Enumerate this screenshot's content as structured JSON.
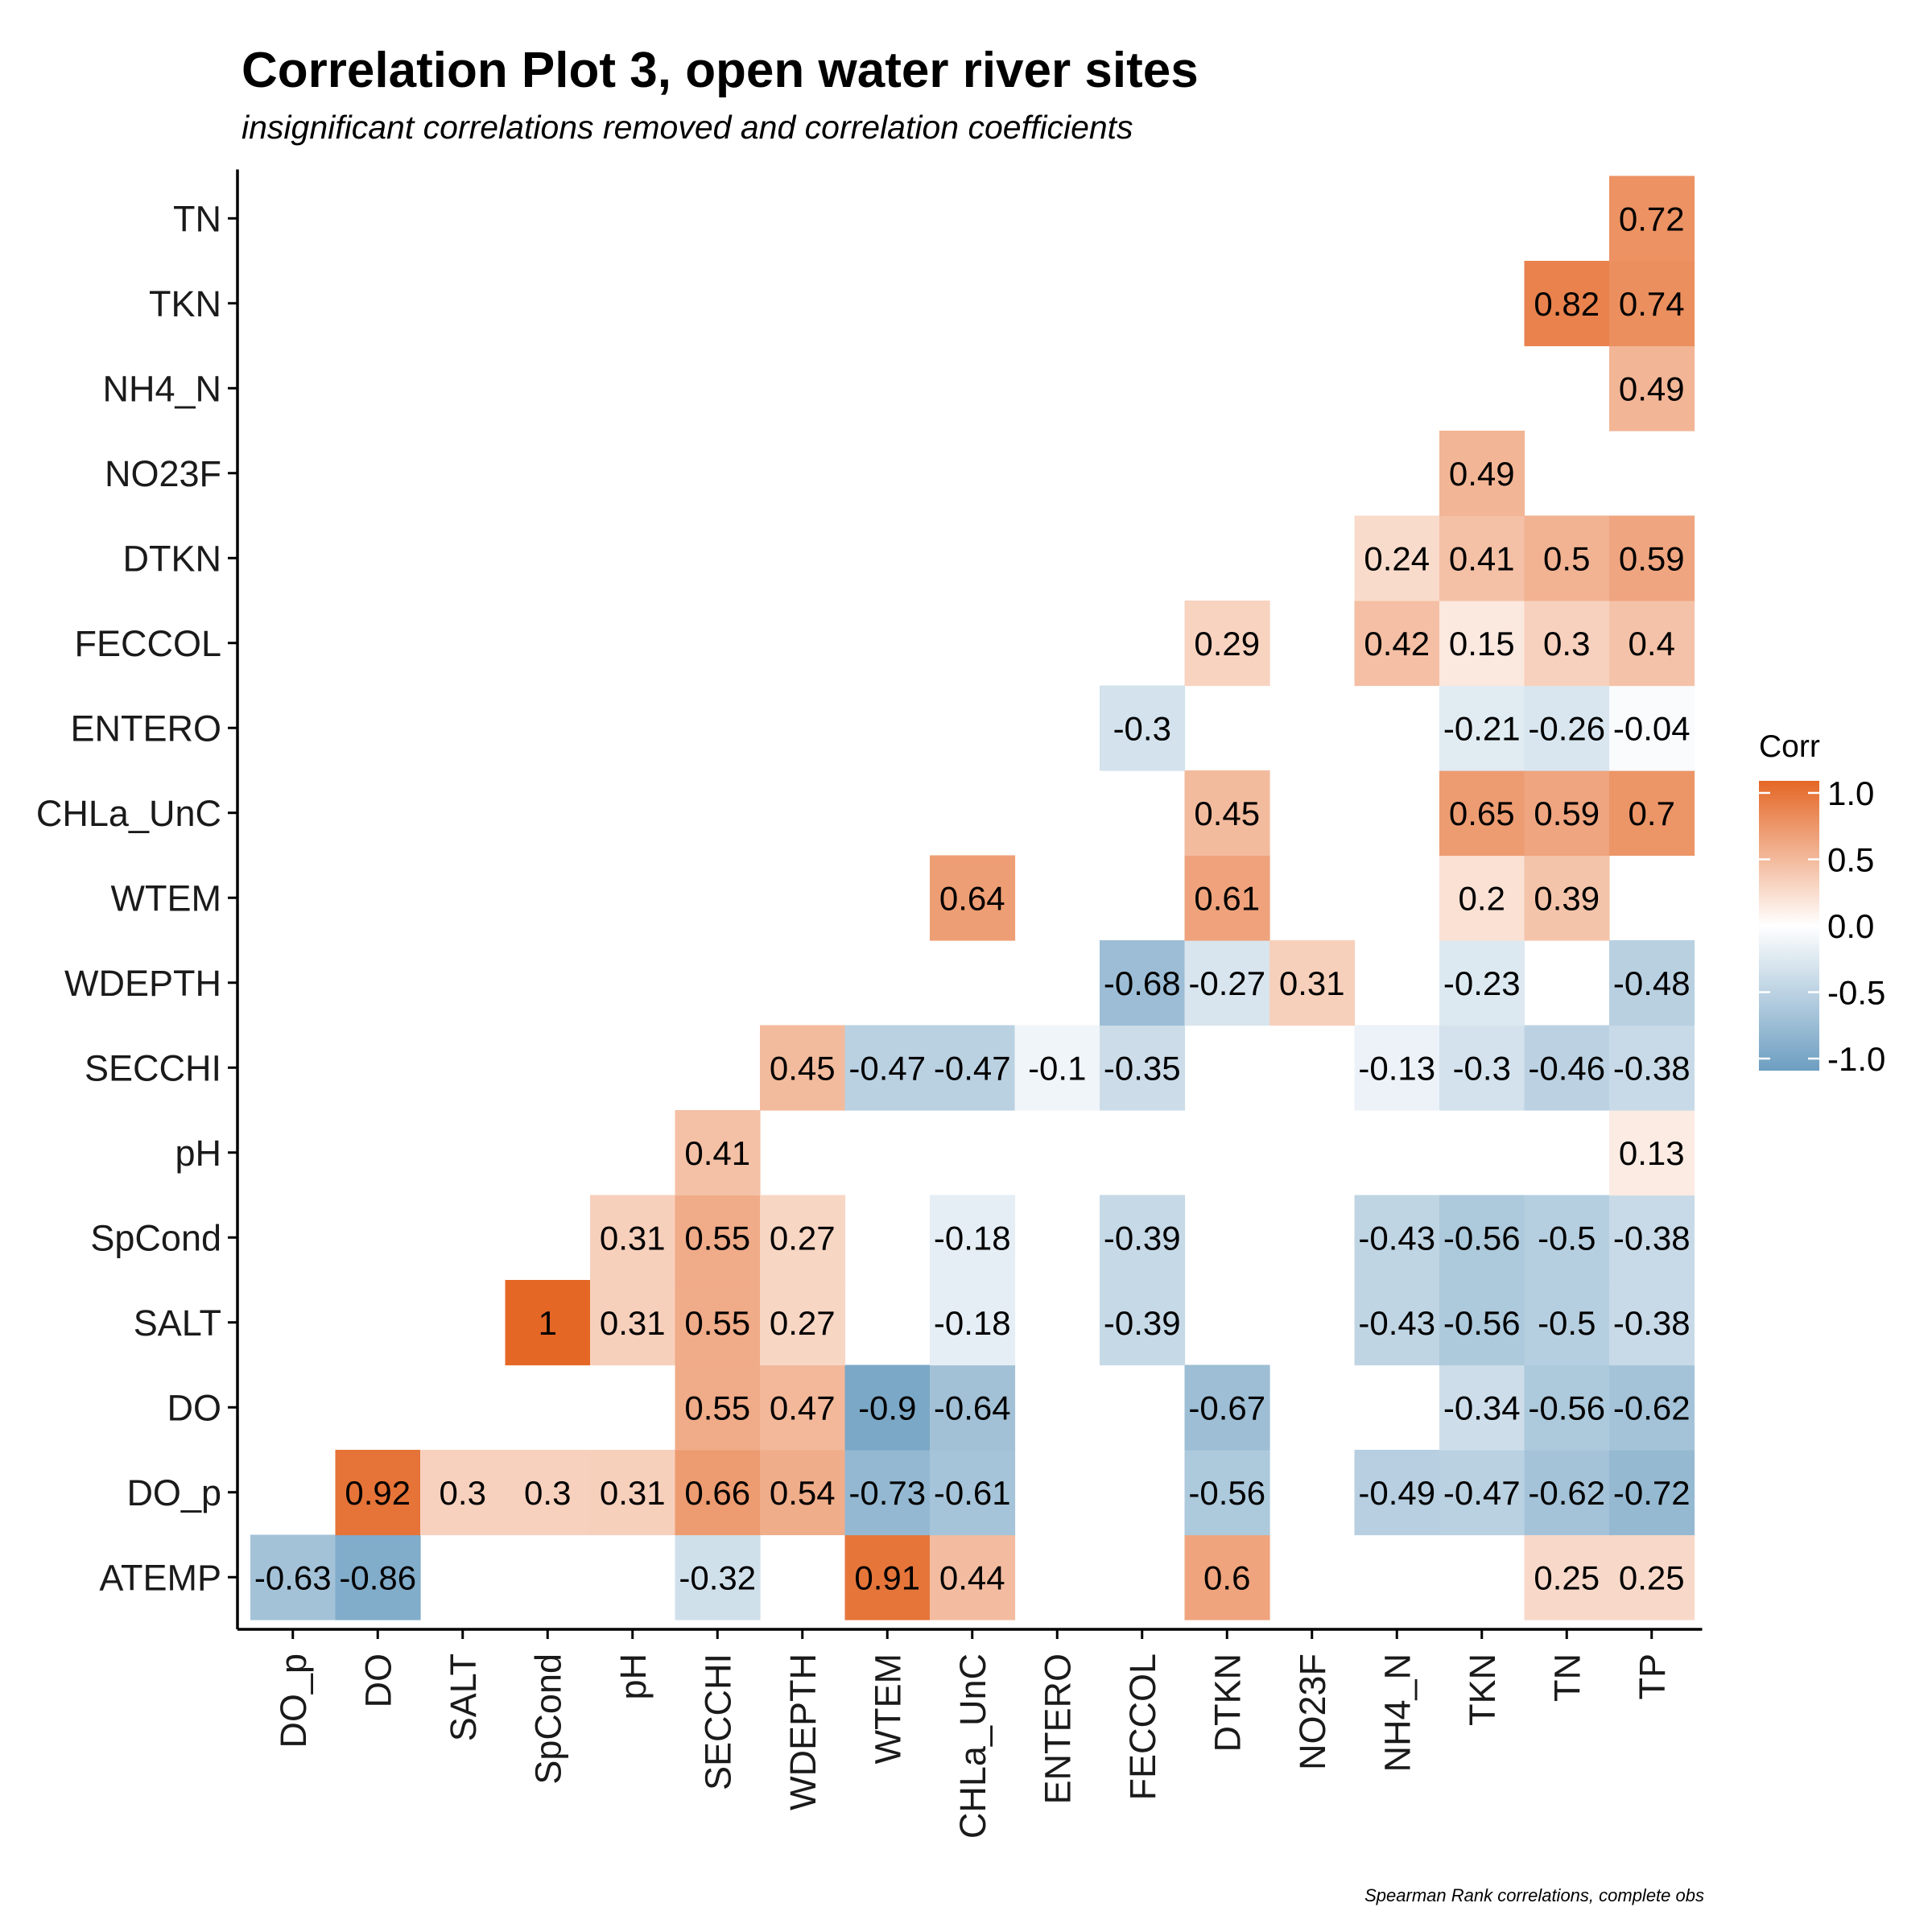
{
  "chart_data": {
    "type": "heatmap",
    "title": "Correlation Plot 3, open water river sites",
    "subtitle": "insignificant correlations removed and correlation coefficients",
    "caption": "Spearman Rank correlations, complete obs",
    "x_labels": [
      "DO_p",
      "DO",
      "SALT",
      "SpCond",
      "pH",
      "SECCHI",
      "WDEPTH",
      "WTEM",
      "CHLa_UnC",
      "ENTERO",
      "FECCOL",
      "DTKN",
      "NO23F",
      "NH4_N",
      "TKN",
      "TN",
      "TP"
    ],
    "y_labels": [
      "ATEMP",
      "DO_p",
      "DO",
      "SALT",
      "SpCond",
      "pH",
      "SECCHI",
      "WDEPTH",
      "WTEM",
      "CHLa_UnC",
      "ENTERO",
      "FECCOL",
      "DTKN",
      "NO23F",
      "NH4_N",
      "TKN",
      "TN"
    ],
    "cells": [
      {
        "x": "DO_p",
        "y": "ATEMP",
        "value": -0.63,
        "label": "-0.63"
      },
      {
        "x": "DO",
        "y": "ATEMP",
        "value": -0.86,
        "label": "-0.86"
      },
      {
        "x": "SECCHI",
        "y": "ATEMP",
        "value": -0.32,
        "label": "-0.32"
      },
      {
        "x": "WTEM",
        "y": "ATEMP",
        "value": 0.91,
        "label": "0.91"
      },
      {
        "x": "CHLa_UnC",
        "y": "ATEMP",
        "value": 0.44,
        "label": "0.44"
      },
      {
        "x": "DTKN",
        "y": "ATEMP",
        "value": 0.6,
        "label": "0.6"
      },
      {
        "x": "TN",
        "y": "ATEMP",
        "value": 0.25,
        "label": "0.25"
      },
      {
        "x": "TP",
        "y": "ATEMP",
        "value": 0.25,
        "label": "0.25"
      },
      {
        "x": "DO",
        "y": "DO_p",
        "value": 0.92,
        "label": "0.92"
      },
      {
        "x": "SALT",
        "y": "DO_p",
        "value": 0.3,
        "label": "0.3"
      },
      {
        "x": "SpCond",
        "y": "DO_p",
        "value": 0.3,
        "label": "0.3"
      },
      {
        "x": "pH",
        "y": "DO_p",
        "value": 0.31,
        "label": "0.31"
      },
      {
        "x": "SECCHI",
        "y": "DO_p",
        "value": 0.66,
        "label": "0.66"
      },
      {
        "x": "WDEPTH",
        "y": "DO_p",
        "value": 0.54,
        "label": "0.54"
      },
      {
        "x": "WTEM",
        "y": "DO_p",
        "value": -0.73,
        "label": "-0.73"
      },
      {
        "x": "CHLa_UnC",
        "y": "DO_p",
        "value": -0.61,
        "label": "-0.61"
      },
      {
        "x": "DTKN",
        "y": "DO_p",
        "value": -0.56,
        "label": "-0.56"
      },
      {
        "x": "NH4_N",
        "y": "DO_p",
        "value": -0.49,
        "label": "-0.49"
      },
      {
        "x": "TKN",
        "y": "DO_p",
        "value": -0.47,
        "label": "-0.47"
      },
      {
        "x": "TN",
        "y": "DO_p",
        "value": -0.62,
        "label": "-0.62"
      },
      {
        "x": "TP",
        "y": "DO_p",
        "value": -0.72,
        "label": "-0.72"
      },
      {
        "x": "SECCHI",
        "y": "DO",
        "value": 0.55,
        "label": "0.55"
      },
      {
        "x": "WDEPTH",
        "y": "DO",
        "value": 0.47,
        "label": "0.47"
      },
      {
        "x": "WTEM",
        "y": "DO",
        "value": -0.9,
        "label": "-0.9"
      },
      {
        "x": "CHLa_UnC",
        "y": "DO",
        "value": -0.64,
        "label": "-0.64"
      },
      {
        "x": "DTKN",
        "y": "DO",
        "value": -0.67,
        "label": "-0.67"
      },
      {
        "x": "TKN",
        "y": "DO",
        "value": -0.34,
        "label": "-0.34"
      },
      {
        "x": "TN",
        "y": "DO",
        "value": -0.56,
        "label": "-0.56"
      },
      {
        "x": "TP",
        "y": "DO",
        "value": -0.62,
        "label": "-0.62"
      },
      {
        "x": "SpCond",
        "y": "SALT",
        "value": 1,
        "label": "1"
      },
      {
        "x": "pH",
        "y": "SALT",
        "value": 0.31,
        "label": "0.31"
      },
      {
        "x": "SECCHI",
        "y": "SALT",
        "value": 0.55,
        "label": "0.55"
      },
      {
        "x": "WDEPTH",
        "y": "SALT",
        "value": 0.27,
        "label": "0.27"
      },
      {
        "x": "CHLa_UnC",
        "y": "SALT",
        "value": -0.18,
        "label": "-0.18"
      },
      {
        "x": "FECCOL",
        "y": "SALT",
        "value": -0.39,
        "label": "-0.39"
      },
      {
        "x": "NH4_N",
        "y": "SALT",
        "value": -0.43,
        "label": "-0.43"
      },
      {
        "x": "TKN",
        "y": "SALT",
        "value": -0.56,
        "label": "-0.56"
      },
      {
        "x": "TN",
        "y": "SALT",
        "value": -0.5,
        "label": "-0.5"
      },
      {
        "x": "TP",
        "y": "SALT",
        "value": -0.38,
        "label": "-0.38"
      },
      {
        "x": "pH",
        "y": "SpCond",
        "value": 0.31,
        "label": "0.31"
      },
      {
        "x": "SECCHI",
        "y": "SpCond",
        "value": 0.55,
        "label": "0.55"
      },
      {
        "x": "WDEPTH",
        "y": "SpCond",
        "value": 0.27,
        "label": "0.27"
      },
      {
        "x": "CHLa_UnC",
        "y": "SpCond",
        "value": -0.18,
        "label": "-0.18"
      },
      {
        "x": "FECCOL",
        "y": "SpCond",
        "value": -0.39,
        "label": "-0.39"
      },
      {
        "x": "NH4_N",
        "y": "SpCond",
        "value": -0.43,
        "label": "-0.43"
      },
      {
        "x": "TKN",
        "y": "SpCond",
        "value": -0.56,
        "label": "-0.56"
      },
      {
        "x": "TN",
        "y": "SpCond",
        "value": -0.5,
        "label": "-0.5"
      },
      {
        "x": "TP",
        "y": "SpCond",
        "value": -0.38,
        "label": "-0.38"
      },
      {
        "x": "SECCHI",
        "y": "pH",
        "value": 0.41,
        "label": "0.41"
      },
      {
        "x": "TP",
        "y": "pH",
        "value": 0.13,
        "label": "0.13"
      },
      {
        "x": "WDEPTH",
        "y": "SECCHI",
        "value": 0.45,
        "label": "0.45"
      },
      {
        "x": "WTEM",
        "y": "SECCHI",
        "value": -0.47,
        "label": "-0.47"
      },
      {
        "x": "CHLa_UnC",
        "y": "SECCHI",
        "value": -0.47,
        "label": "-0.47"
      },
      {
        "x": "ENTERO",
        "y": "SECCHI",
        "value": -0.1,
        "label": "-0.1"
      },
      {
        "x": "FECCOL",
        "y": "SECCHI",
        "value": -0.35,
        "label": "-0.35"
      },
      {
        "x": "NH4_N",
        "y": "SECCHI",
        "value": -0.13,
        "label": "-0.13"
      },
      {
        "x": "TKN",
        "y": "SECCHI",
        "value": -0.3,
        "label": "-0.3"
      },
      {
        "x": "TN",
        "y": "SECCHI",
        "value": -0.46,
        "label": "-0.46"
      },
      {
        "x": "TP",
        "y": "SECCHI",
        "value": -0.38,
        "label": "-0.38"
      },
      {
        "x": "FECCOL",
        "y": "WDEPTH",
        "value": -0.68,
        "label": "-0.68"
      },
      {
        "x": "DTKN",
        "y": "WDEPTH",
        "value": -0.27,
        "label": "-0.27"
      },
      {
        "x": "NO23F",
        "y": "WDEPTH",
        "value": 0.31,
        "label": "0.31"
      },
      {
        "x": "TKN",
        "y": "WDEPTH",
        "value": -0.23,
        "label": "-0.23"
      },
      {
        "x": "TP",
        "y": "WDEPTH",
        "value": -0.48,
        "label": "-0.48"
      },
      {
        "x": "CHLa_UnC",
        "y": "WTEM",
        "value": 0.64,
        "label": "0.64"
      },
      {
        "x": "DTKN",
        "y": "WTEM",
        "value": 0.61,
        "label": "0.61"
      },
      {
        "x": "TKN",
        "y": "WTEM",
        "value": 0.2,
        "label": "0.2"
      },
      {
        "x": "TN",
        "y": "WTEM",
        "value": 0.39,
        "label": "0.39"
      },
      {
        "x": "DTKN",
        "y": "CHLa_UnC",
        "value": 0.45,
        "label": "0.45"
      },
      {
        "x": "TKN",
        "y": "CHLa_UnC",
        "value": 0.65,
        "label": "0.65"
      },
      {
        "x": "TN",
        "y": "CHLa_UnC",
        "value": 0.59,
        "label": "0.59"
      },
      {
        "x": "TP",
        "y": "CHLa_UnC",
        "value": 0.7,
        "label": "0.7"
      },
      {
        "x": "FECCOL",
        "y": "ENTERO",
        "value": -0.3,
        "label": "-0.3"
      },
      {
        "x": "TKN",
        "y": "ENTERO",
        "value": -0.21,
        "label": "-0.21"
      },
      {
        "x": "TN",
        "y": "ENTERO",
        "value": -0.26,
        "label": "-0.26"
      },
      {
        "x": "TP",
        "y": "ENTERO",
        "value": -0.04,
        "label": "-0.04"
      },
      {
        "x": "DTKN",
        "y": "FECCOL",
        "value": 0.29,
        "label": "0.29"
      },
      {
        "x": "NH4_N",
        "y": "FECCOL",
        "value": 0.42,
        "label": "0.42"
      },
      {
        "x": "TKN",
        "y": "FECCOL",
        "value": 0.15,
        "label": "0.15"
      },
      {
        "x": "TN",
        "y": "FECCOL",
        "value": 0.3,
        "label": "0.3"
      },
      {
        "x": "TP",
        "y": "FECCOL",
        "value": 0.4,
        "label": "0.4"
      },
      {
        "x": "NH4_N",
        "y": "DTKN",
        "value": 0.24,
        "label": "0.24"
      },
      {
        "x": "TKN",
        "y": "DTKN",
        "value": 0.41,
        "label": "0.41"
      },
      {
        "x": "TN",
        "y": "DTKN",
        "value": 0.5,
        "label": "0.5"
      },
      {
        "x": "TP",
        "y": "DTKN",
        "value": 0.59,
        "label": "0.59"
      },
      {
        "x": "TKN",
        "y": "NO23F",
        "value": 0.49,
        "label": "0.49"
      },
      {
        "x": "TP",
        "y": "NH4_N",
        "value": 0.49,
        "label": "0.49"
      },
      {
        "x": "TN",
        "y": "TKN",
        "value": 0.82,
        "label": "0.82"
      },
      {
        "x": "TP",
        "y": "TKN",
        "value": 0.74,
        "label": "0.74"
      },
      {
        "x": "TP",
        "y": "TN",
        "value": 0.72,
        "label": "0.72"
      }
    ],
    "legend": {
      "title": "Corr",
      "ticks": [
        "1.0",
        "0.5",
        "0.0",
        "-0.5",
        "-1.0"
      ],
      "tick_values": [
        1,
        0.5,
        0,
        -0.5,
        -1
      ],
      "range": [
        -1,
        1
      ],
      "colors": {
        "low": "#6d9ec1",
        "mid": "#ffffff",
        "high": "#e46726"
      },
      "placement": "right"
    },
    "grid": false
  }
}
